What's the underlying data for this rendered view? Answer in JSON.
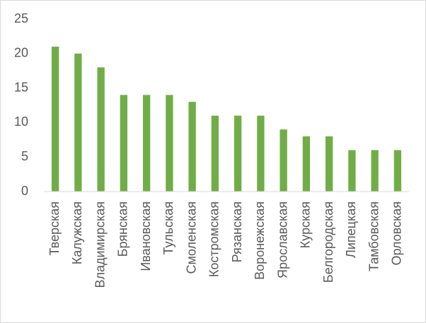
{
  "chart_data": {
    "type": "bar",
    "categories": [
      "Тверская",
      "Калужская",
      "Владимирская",
      "Брянская",
      "Ивановская",
      "Тульская",
      "Смоленская",
      "Костромская",
      "Рязанская",
      "Воронежская",
      "Ярославская",
      "Курская",
      "Белгородская",
      "Липецкая",
      "Тамбовская",
      "Орловская"
    ],
    "values": [
      21,
      20,
      18,
      14,
      14,
      14,
      13,
      11,
      11,
      11,
      9,
      8,
      8,
      6,
      6,
      6
    ],
    "color": "#70ad47",
    "ylim": [
      0,
      25
    ],
    "yticks": [
      0,
      5,
      10,
      15,
      20,
      25
    ],
    "grid": false
  }
}
